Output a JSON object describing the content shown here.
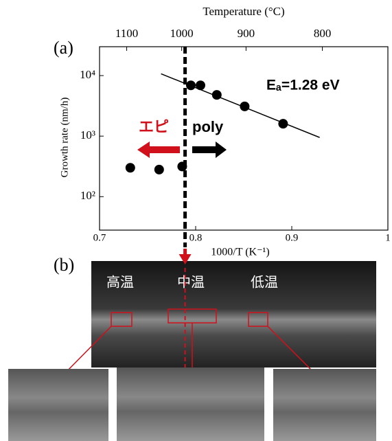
{
  "chart_data": {
    "type": "scatter",
    "panel_label": "(a)",
    "x2label": "Temperature (°C)",
    "ylabel": "Growth rate (nm/h)",
    "xlabel": "1000/T (K⁻¹)",
    "xlim": [
      0.7,
      1.0
    ],
    "xticks": [
      0.7,
      0.8,
      0.9,
      {
        "value": 1.0,
        "label": "1"
      }
    ],
    "x2ticks": [
      1100,
      1000,
      900,
      800
    ],
    "ylim": [
      28,
      30000
    ],
    "ylog": true,
    "yticks": [
      {
        "value": 100,
        "label": "10²"
      },
      {
        "value": 1000,
        "label": "10³"
      },
      {
        "value": 10000,
        "label": "10⁴"
      }
    ],
    "boundary_x": 0.789,
    "series": [
      {
        "color": "#000000",
        "x": [
          0.732,
          0.762,
          0.786
        ],
        "values": [
          300,
          280,
          315
        ]
      },
      {
        "color": "#000000",
        "x": [
          0.795,
          0.805,
          0.822,
          0.851,
          0.891
        ],
        "values": [
          6900,
          6900,
          4800,
          3100,
          1600
        ]
      },
      {
        "color": "#000000",
        "style": "line",
        "x": [
          0.764,
          0.929
        ],
        "values": [
          10700,
          950
        ]
      }
    ],
    "annotations": [
      {
        "text": "Eₐ=1.28 eV",
        "color": "#000000"
      },
      {
        "text": "エピ",
        "color": "#d0101a"
      },
      {
        "text": "poly",
        "color": "#000000"
      }
    ]
  },
  "panel_b": {
    "label": "(b)",
    "regions": [
      "高温",
      "中温",
      "低温"
    ]
  }
}
